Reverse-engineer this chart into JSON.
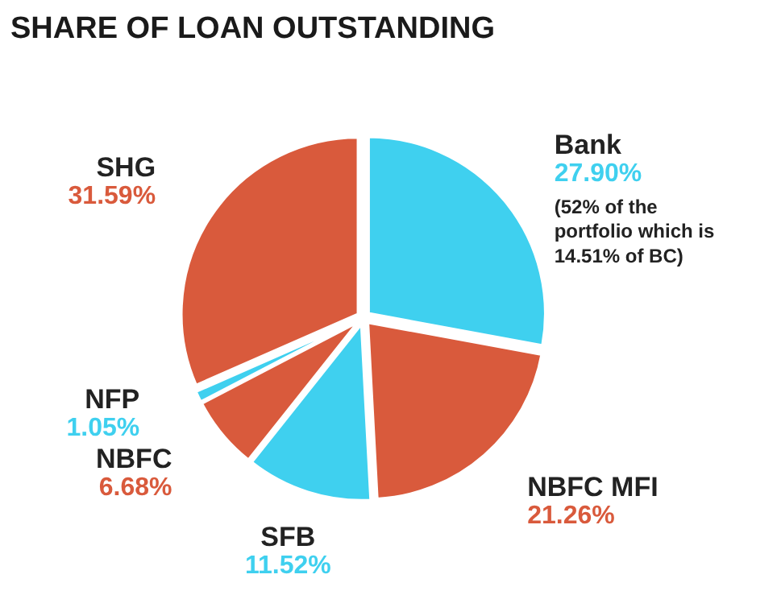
{
  "chart_data": {
    "type": "pie",
    "title": "SHARE OF LOAN OUTSTANDING",
    "categories": [
      "Bank",
      "NBFC MFI",
      "SFB",
      "NBFC",
      "NFP",
      "SHG"
    ],
    "values": [
      27.9,
      21.26,
      11.52,
      6.68,
      1.05,
      31.59
    ],
    "colors": [
      "#3fd0ef",
      "#d95a3c",
      "#3fd0ef",
      "#d95a3c",
      "#3fd0ef",
      "#d95a3c"
    ],
    "value_labels": [
      "27.90%",
      "21.26%",
      "11.52%",
      "6.68%",
      "1.05%",
      "31.59%"
    ],
    "annotations": [
      "(52% of the portfolio which is 14.51% of BC)"
    ]
  }
}
